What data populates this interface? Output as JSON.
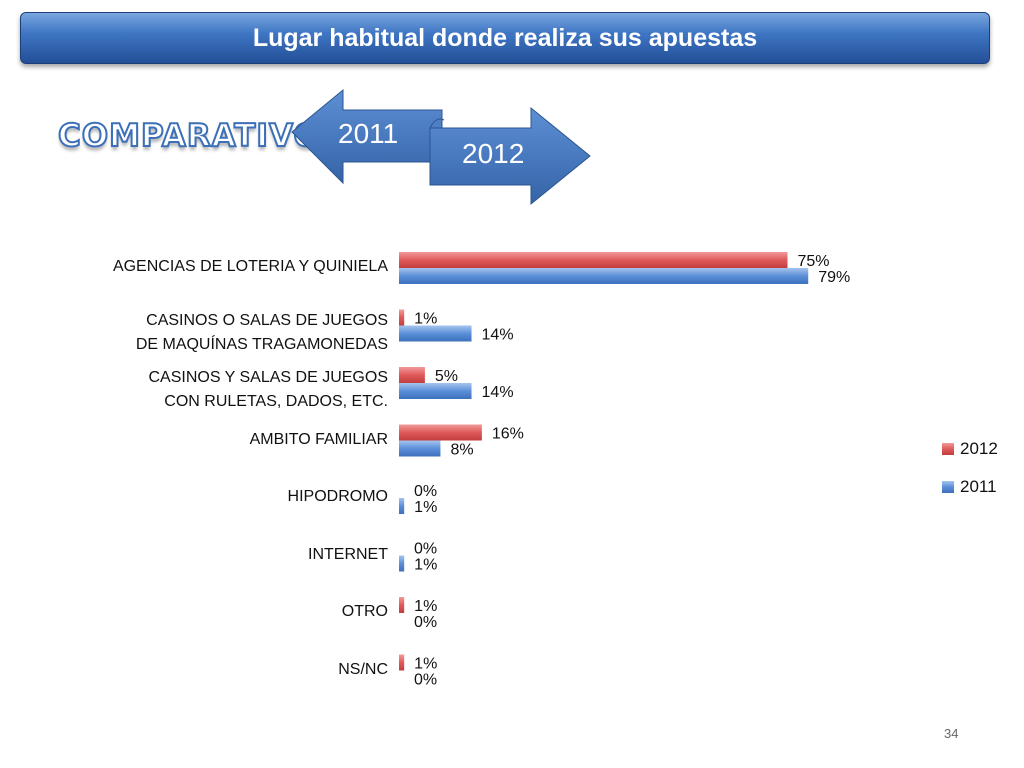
{
  "slide": {
    "title": "Lugar habitual donde realiza sus apuestas",
    "subtitle": "COMPARATIVO",
    "arrow_years": [
      "2011",
      "2012"
    ],
    "page_number": "34"
  },
  "colors": {
    "series_2012": "#e05a5a",
    "series_2011": "#5b8fd8",
    "title_bar": "#2f5fa8",
    "arrow": "#4a7bc0"
  },
  "chart_data": {
    "type": "bar",
    "orientation": "horizontal",
    "categories": [
      "AGENCIAS DE LOTERIA Y QUINIELA",
      "CASINOS O SALAS DE JUEGOS\nDE MAQUÍNAS TRAGAMONEDAS",
      "CASINOS Y SALAS DE JUEGOS\nCON RULETAS, DADOS, ETC.",
      "AMBITO FAMILIAR",
      "HIPODROMO",
      "INTERNET",
      "OTRO",
      "NS/NC"
    ],
    "series": [
      {
        "name": "2012",
        "values": [
          75,
          1,
          5,
          16,
          0,
          0,
          1,
          1
        ],
        "labels": [
          "75%",
          "1%",
          "5%",
          "16%",
          "0%",
          "0%",
          "1%",
          "1%"
        ]
      },
      {
        "name": "2011",
        "values": [
          79,
          14,
          14,
          8,
          1,
          1,
          0,
          0
        ],
        "labels": [
          "79%",
          "14%",
          "14%",
          "8%",
          "1%",
          "1%",
          "0%",
          "0%"
        ]
      }
    ],
    "xlim": [
      0,
      100
    ],
    "legend": {
      "position": "right",
      "entries": [
        "2012",
        "2011"
      ]
    },
    "grid": false
  }
}
